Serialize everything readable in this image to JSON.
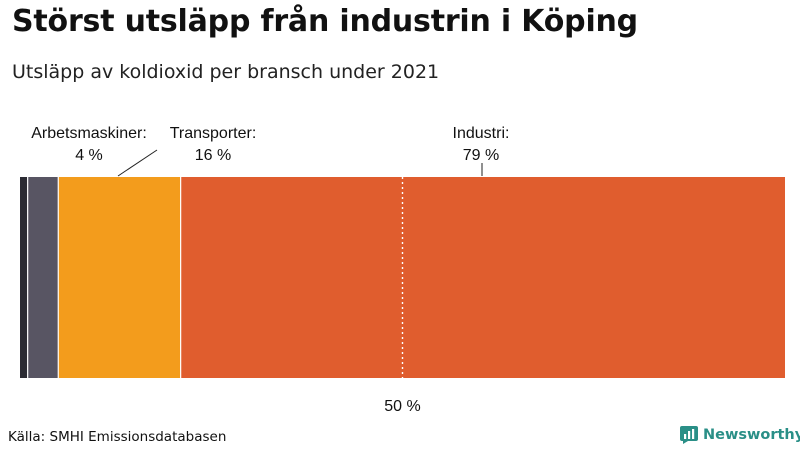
{
  "header": {
    "title": "Störst utsläpp från industrin i Köping",
    "subtitle": "Utsläpp av koldioxid per bransch under 2021"
  },
  "footer": {
    "source": "Källa: SMHI Emissionsdatabasen",
    "brand": "Newsworthy",
    "brand_icon": "newsworthy-logo-icon"
  },
  "chart_data": {
    "type": "bar",
    "orientation": "horizontal-stacked",
    "unit": "%",
    "xlim": [
      0,
      100
    ],
    "reference_line": {
      "value": 50,
      "label": "50 %"
    },
    "segments": [
      {
        "name": "",
        "value": 1,
        "label": "",
        "value_label": "",
        "color": "#2b2b33"
      },
      {
        "name": "Arbetsmaskiner",
        "value": 4,
        "label": "Arbetsmaskiner:",
        "value_label": "4 %",
        "color": "#585563"
      },
      {
        "name": "Transporter",
        "value": 16,
        "label": "Transporter:",
        "value_label": "16 %",
        "color": "#f39c1c"
      },
      {
        "name": "Industri",
        "value": 79,
        "label": "Industri:",
        "value_label": "79 %",
        "color": "#e05d2e"
      }
    ]
  }
}
